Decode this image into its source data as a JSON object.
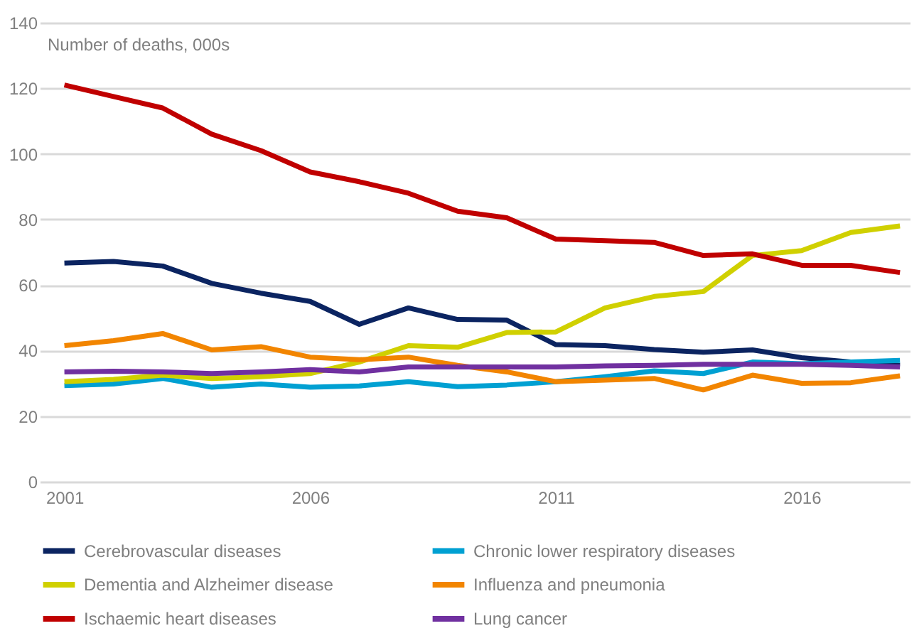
{
  "chart_data": {
    "type": "line",
    "ylabel": "Number of deaths, 000s",
    "x": [
      2001,
      2002,
      2003,
      2004,
      2005,
      2006,
      2007,
      2008,
      2009,
      2010,
      2011,
      2012,
      2013,
      2014,
      2015,
      2016,
      2017,
      2018
    ],
    "xlim": [
      2000.5,
      2018.2
    ],
    "xticks": [
      2001,
      2006,
      2011,
      2016
    ],
    "ylim": [
      0,
      140
    ],
    "yticks": [
      0,
      20,
      40,
      60,
      80,
      100,
      120,
      140
    ],
    "grid": "y",
    "legend": "bottom",
    "marker": "none",
    "line_style": "solid",
    "series": [
      {
        "name": "Cerebrovascular diseases",
        "color": "#0b2461",
        "values": [
          66.7,
          67.2,
          65.8,
          60.5,
          57.5,
          55,
          48,
          53,
          49.5,
          49.3,
          41.8,
          41.5,
          40.3,
          39.5,
          40.2,
          37.8,
          36.5,
          35.5
        ]
      },
      {
        "name": "Chronic lower respiratory diseases",
        "color": "#00a0d2",
        "values": [
          29.3,
          29.8,
          31.5,
          28.8,
          29.8,
          28.8,
          29.2,
          30.5,
          29,
          29.5,
          30.5,
          32,
          33.8,
          33,
          36.5,
          36,
          36.5,
          37
        ]
      },
      {
        "name": "Dementia and Alzheimer disease",
        "color": "#d0d000",
        "values": [
          30.5,
          31.2,
          32.5,
          31.5,
          32,
          33,
          36.5,
          41.5,
          41,
          45.5,
          45.7,
          53,
          56.5,
          58,
          69,
          70.5,
          76,
          78
        ]
      },
      {
        "name": "Influenza and pneumonia",
        "color": "#f28500",
        "values": [
          41.5,
          43,
          45.2,
          40.2,
          41.2,
          38,
          37.2,
          38,
          35.5,
          33.5,
          30.5,
          31,
          31.5,
          28,
          32.5,
          30,
          30.2,
          32.3
        ]
      },
      {
        "name": "Ischaemic heart diseases",
        "color": "#c00000",
        "values": [
          121,
          117.5,
          114,
          106,
          101,
          94.5,
          91.5,
          88,
          82.5,
          80.5,
          74,
          73.5,
          73,
          69,
          69.5,
          66,
          66,
          63.8
        ]
      },
      {
        "name": "Lung cancer",
        "color": "#7030a0",
        "values": [
          33.5,
          33.7,
          33.5,
          33,
          33.5,
          34.2,
          33.5,
          35,
          35,
          35,
          35,
          35.3,
          35.5,
          35.8,
          35.8,
          35.8,
          35.5,
          35
        ]
      }
    ]
  }
}
